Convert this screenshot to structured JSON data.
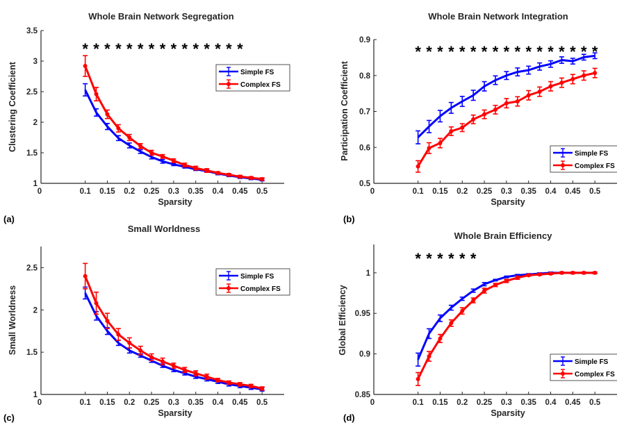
{
  "chart_data": [
    {
      "type": "line",
      "panel_label": "(a)",
      "title": "Whole Brain Network Segregation",
      "xlabel": "Sparsity",
      "ylabel": "Clustering Coefficient",
      "xlim": [
        0,
        0.55
      ],
      "ylim": [
        1,
        3.5
      ],
      "x_ticks": [
        0,
        0.1,
        0.15,
        0.2,
        0.25,
        0.3,
        0.35,
        0.4,
        0.45,
        0.5
      ],
      "x_tick_labels": [
        "0",
        "0.1",
        "0.15",
        "0.2",
        "0.25",
        "0.3",
        "0.35",
        "0.4",
        "0.45",
        "0.5"
      ],
      "y_ticks": [
        1,
        1.5,
        2,
        2.5,
        3,
        3.5
      ],
      "y_tick_labels": [
        "1",
        "1.5",
        "2",
        "2.5",
        "3",
        "3.5"
      ],
      "x": [
        0.1,
        0.125,
        0.15,
        0.175,
        0.2,
        0.225,
        0.25,
        0.275,
        0.3,
        0.325,
        0.35,
        0.375,
        0.4,
        0.425,
        0.45,
        0.475,
        0.5
      ],
      "series": [
        {
          "name": "Simple FS",
          "color": "#0000ff",
          "values": [
            2.53,
            2.16,
            1.93,
            1.74,
            1.62,
            1.52,
            1.43,
            1.36,
            1.31,
            1.27,
            1.23,
            1.2,
            1.16,
            1.13,
            1.1,
            1.08,
            1.06
          ],
          "errors": [
            0.1,
            0.06,
            0.05,
            0.04,
            0.04,
            0.03,
            0.03,
            0.03,
            0.02,
            0.02,
            0.02,
            0.02,
            0.02,
            0.02,
            0.02,
            0.02,
            0.02
          ]
        },
        {
          "name": "Complex FS",
          "color": "#ff0000",
          "values": [
            2.92,
            2.46,
            2.13,
            1.9,
            1.75,
            1.61,
            1.5,
            1.44,
            1.37,
            1.3,
            1.25,
            1.21,
            1.17,
            1.14,
            1.11,
            1.09,
            1.07
          ],
          "errors": [
            0.17,
            0.11,
            0.07,
            0.06,
            0.05,
            0.04,
            0.04,
            0.03,
            0.03,
            0.03,
            0.03,
            0.03,
            0.02,
            0.02,
            0.02,
            0.02,
            0.02
          ]
        }
      ],
      "significance_marker": "*",
      "significant_x": [
        0.1,
        0.125,
        0.15,
        0.175,
        0.2,
        0.225,
        0.25,
        0.275,
        0.3,
        0.325,
        0.35,
        0.375,
        0.4,
        0.425,
        0.45
      ],
      "legend_position": "right",
      "grid": false
    },
    {
      "type": "line",
      "panel_label": "(b)",
      "title": "Whole Brain Network Integration",
      "xlabel": "Sparsity",
      "ylabel": "Participation Coefficient",
      "xlim": [
        0,
        0.55
      ],
      "ylim": [
        0.5,
        0.9
      ],
      "x_ticks": [
        0,
        0.1,
        0.15,
        0.2,
        0.25,
        0.3,
        0.35,
        0.4,
        0.45,
        0.5
      ],
      "x_tick_labels": [
        "0",
        "0.1",
        "0.15",
        "0.2",
        "0.25",
        "0.3",
        "0.35",
        "0.4",
        "0.45",
        "0.5"
      ],
      "y_ticks": [
        0.5,
        0.6,
        0.7,
        0.8,
        0.9
      ],
      "y_tick_labels": [
        "0.5",
        "0.6",
        "0.7",
        "0.8",
        "0.9"
      ],
      "x": [
        0.1,
        0.125,
        0.15,
        0.175,
        0.2,
        0.225,
        0.25,
        0.275,
        0.3,
        0.325,
        0.35,
        0.375,
        0.4,
        0.425,
        0.45,
        0.475,
        0.5
      ],
      "series": [
        {
          "name": "Simple FS",
          "color": "#0000ff",
          "values": [
            0.628,
            0.658,
            0.687,
            0.71,
            0.728,
            0.745,
            0.77,
            0.787,
            0.8,
            0.81,
            0.815,
            0.825,
            0.832,
            0.843,
            0.84,
            0.851,
            0.855
          ],
          "errors": [
            0.018,
            0.017,
            0.016,
            0.015,
            0.014,
            0.014,
            0.013,
            0.012,
            0.011,
            0.011,
            0.011,
            0.01,
            0.009,
            0.009,
            0.008,
            0.008,
            0.008
          ]
        },
        {
          "name": "Complex FS",
          "color": "#ff0000",
          "values": [
            0.547,
            0.598,
            0.612,
            0.645,
            0.655,
            0.678,
            0.692,
            0.705,
            0.723,
            0.728,
            0.745,
            0.755,
            0.77,
            0.78,
            0.79,
            0.8,
            0.807
          ],
          "errors": [
            0.016,
            0.015,
            0.013,
            0.012,
            0.011,
            0.012,
            0.012,
            0.012,
            0.013,
            0.013,
            0.013,
            0.013,
            0.013,
            0.013,
            0.013,
            0.013,
            0.013
          ]
        }
      ],
      "significance_marker": "*",
      "significant_x": [
        0.1,
        0.125,
        0.15,
        0.175,
        0.2,
        0.225,
        0.25,
        0.275,
        0.3,
        0.325,
        0.35,
        0.375,
        0.4,
        0.425,
        0.45,
        0.475,
        0.5
      ],
      "legend_position": "bottom-right",
      "grid": false
    },
    {
      "type": "line",
      "panel_label": "(c)",
      "title": "Small Worldness",
      "xlabel": "Sparsity",
      "ylabel": "Small Worldness",
      "xlim": [
        0,
        0.55
      ],
      "ylim": [
        1,
        2.75
      ],
      "x_ticks": [
        0,
        0.1,
        0.15,
        0.2,
        0.25,
        0.3,
        0.35,
        0.4,
        0.45,
        0.5
      ],
      "x_tick_labels": [
        "0",
        "0.1",
        "0.15",
        "0.2",
        "0.25",
        "0.3",
        "0.35",
        "0.4",
        "0.45",
        "0.5"
      ],
      "y_ticks": [
        1,
        1.5,
        2,
        2.5
      ],
      "y_tick_labels": [
        "1",
        "1.5",
        "2",
        "2.5"
      ],
      "x": [
        0.1,
        0.125,
        0.15,
        0.175,
        0.2,
        0.225,
        0.25,
        0.275,
        0.3,
        0.325,
        0.35,
        0.375,
        0.4,
        0.425,
        0.45,
        0.475,
        0.5
      ],
      "series": [
        {
          "name": "Simple FS",
          "color": "#0000ff",
          "values": [
            2.2,
            1.93,
            1.75,
            1.61,
            1.52,
            1.46,
            1.4,
            1.34,
            1.29,
            1.25,
            1.21,
            1.18,
            1.15,
            1.12,
            1.1,
            1.08,
            1.06
          ],
          "errors": [
            0.07,
            0.05,
            0.04,
            0.03,
            0.03,
            0.02,
            0.02,
            0.02,
            0.02,
            0.02,
            0.02,
            0.02,
            0.02,
            0.02,
            0.02,
            0.02,
            0.02
          ]
        },
        {
          "name": "Complex FS",
          "color": "#ff0000",
          "values": [
            2.4,
            2.08,
            1.87,
            1.71,
            1.61,
            1.52,
            1.44,
            1.39,
            1.34,
            1.29,
            1.25,
            1.21,
            1.17,
            1.14,
            1.12,
            1.1,
            1.07
          ],
          "errors": [
            0.15,
            0.13,
            0.09,
            0.07,
            0.06,
            0.05,
            0.04,
            0.04,
            0.03,
            0.03,
            0.03,
            0.03,
            0.02,
            0.02,
            0.02,
            0.02,
            0.02
          ]
        }
      ],
      "legend_position": "right",
      "grid": false
    },
    {
      "type": "line",
      "panel_label": "(d)",
      "title": "Whole Brain Efficiency",
      "xlabel": "Sparsity",
      "ylabel": "Global Efficiency",
      "xlim": [
        0,
        0.55
      ],
      "ylim": [
        0.85,
        1.035
      ],
      "x_ticks": [
        0,
        0.1,
        0.15,
        0.2,
        0.25,
        0.3,
        0.35,
        0.4,
        0.45,
        0.5
      ],
      "x_tick_labels": [
        "0",
        "0.1",
        "0.15",
        "0.2",
        "0.25",
        "0.3",
        "0.35",
        "0.4",
        "0.45",
        "0.5"
      ],
      "y_ticks": [
        0.85,
        0.9,
        0.95,
        1
      ],
      "y_tick_labels": [
        "0.85",
        "0.9",
        "0.95",
        "1"
      ],
      "x": [
        0.1,
        0.125,
        0.15,
        0.175,
        0.2,
        0.225,
        0.25,
        0.275,
        0.3,
        0.325,
        0.35,
        0.375,
        0.4,
        0.425,
        0.45,
        0.475,
        0.5
      ],
      "series": [
        {
          "name": "Simple FS",
          "color": "#0000ff",
          "values": [
            0.893,
            0.925,
            0.944,
            0.957,
            0.968,
            0.978,
            0.986,
            0.991,
            0.995,
            0.997,
            0.998,
            0.999,
            1.0,
            1.0,
            1.0,
            1.0,
            1.0
          ],
          "errors": [
            0.008,
            0.006,
            0.004,
            0.003,
            0.002,
            0.002,
            0.002,
            0.001,
            0.001,
            0.001,
            0.001,
            0.001,
            0.001,
            0.001,
            0.001,
            0.001,
            0.001
          ]
        },
        {
          "name": "Complex FS",
          "color": "#ff0000",
          "values": [
            0.869,
            0.897,
            0.919,
            0.938,
            0.953,
            0.966,
            0.978,
            0.985,
            0.99,
            0.994,
            0.997,
            0.998,
            0.999,
            1.0,
            1.0,
            1.0,
            1.0
          ],
          "errors": [
            0.008,
            0.006,
            0.005,
            0.004,
            0.004,
            0.003,
            0.003,
            0.002,
            0.002,
            0.002,
            0.001,
            0.001,
            0.001,
            0.001,
            0.001,
            0.001,
            0.001
          ]
        }
      ],
      "significance_marker": "*",
      "significant_x": [
        0.1,
        0.125,
        0.15,
        0.175,
        0.2,
        0.225
      ],
      "legend_position": "bottom-right",
      "grid": false
    }
  ]
}
